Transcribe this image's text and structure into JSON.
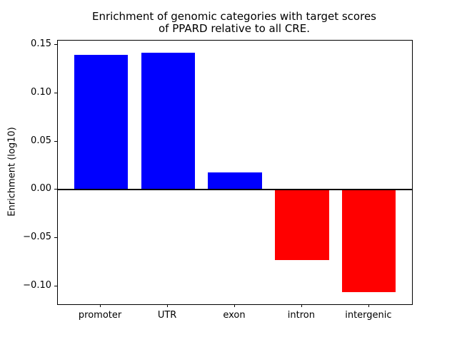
{
  "chart_data": {
    "type": "bar",
    "title": "Enrichment of genomic categories with target scores\nof PPARD relative to all CRE.",
    "xlabel": "",
    "ylabel": "Enrichment (log10)",
    "categories": [
      "promoter",
      "UTR",
      "exon",
      "intron",
      "intergenic"
    ],
    "values": [
      0.14,
      0.142,
      0.018,
      -0.073,
      -0.106
    ],
    "bar_colors": {
      "positive": "#0000ff",
      "negative": "#ff0000"
    },
    "yticks": [
      {
        "label": "0.15",
        "value": 0.15
      },
      {
        "label": "0.10",
        "value": 0.1
      },
      {
        "label": "0.05",
        "value": 0.05
      },
      {
        "label": "0.00",
        "value": 0.0
      },
      {
        "label": "−0.05",
        "value": -0.05
      },
      {
        "label": "−0.10",
        "value": -0.1
      }
    ],
    "ylim": [
      -0.1184,
      0.1544
    ],
    "xlim": [
      -0.64,
      4.64
    ],
    "bar_width": 0.8,
    "zero_line": true,
    "grid": false,
    "legend": "none",
    "axis_color": "#000000",
    "text_color": "#000000"
  }
}
